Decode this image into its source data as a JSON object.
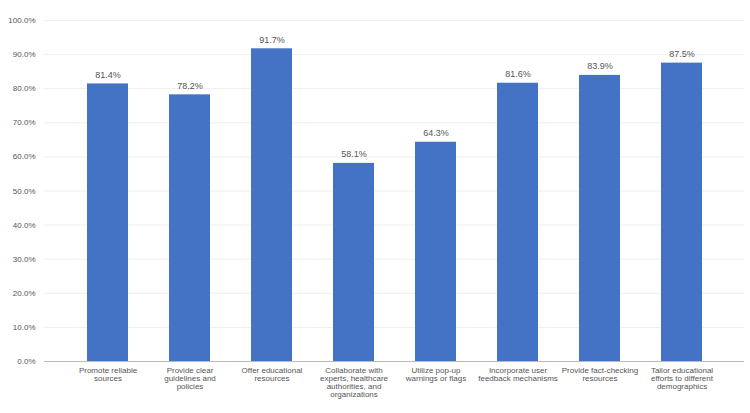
{
  "chart_data": {
    "type": "bar",
    "categories": [
      "Promote reliable\nsources",
      "Provide clear\nguidelines and\npolicies",
      "Offer educational\nresources",
      "Collaborate with\nexperts, healthcare\nauthorities, and\norganizations",
      "Utilize pop-up\nwarnings or flags",
      "Incorporate user\nfeedback mechanisms",
      "Provide fact-checking\nresources",
      "Tailor educational\nefforts to different\ndemographics"
    ],
    "values": [
      81.4,
      78.2,
      91.7,
      58.1,
      64.3,
      81.6,
      83.9,
      87.5
    ],
    "value_labels": [
      "81.4%",
      "78.2%",
      "91.7%",
      "58.1%",
      "64.3%",
      "81.6%",
      "83.9%",
      "87.5%"
    ],
    "data_labels": true,
    "color": "#4472C4",
    "ylim": [
      0,
      100
    ],
    "yticks": [
      {
        "value": 0,
        "label": "0.0%"
      },
      {
        "value": 10,
        "label": "10.0%"
      },
      {
        "value": 20,
        "label": "20.0%"
      },
      {
        "value": 30,
        "label": "30.0%"
      },
      {
        "value": 40,
        "label": "40.0%"
      },
      {
        "value": 50,
        "label": "50.0%"
      },
      {
        "value": 60,
        "label": "60.0%"
      },
      {
        "value": 70,
        "label": "70.0%"
      },
      {
        "value": 80,
        "label": "80.0%"
      },
      {
        "value": 90,
        "label": "90.0%"
      },
      {
        "value": 100,
        "label": "100.0%"
      }
    ],
    "grid": true
  }
}
